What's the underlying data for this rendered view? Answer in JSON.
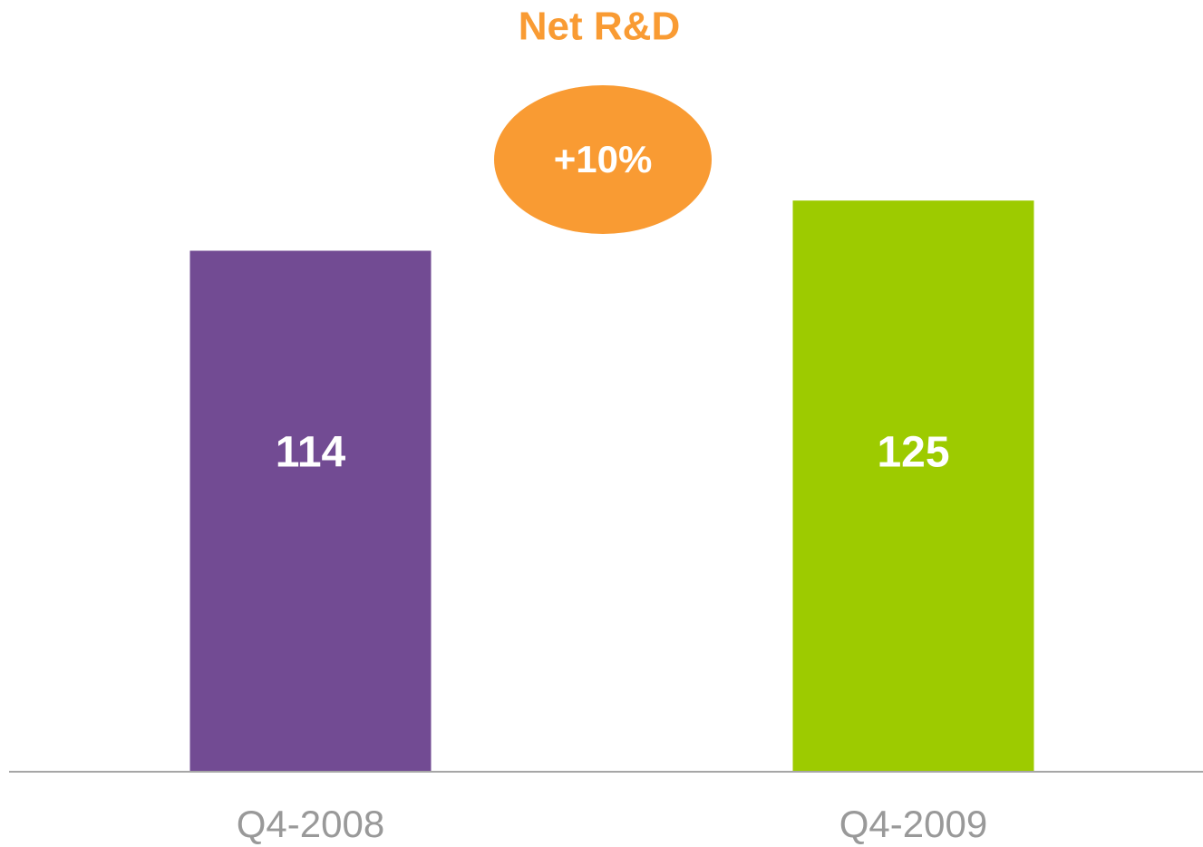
{
  "chart_data": {
    "type": "bar",
    "title": "Net R&D",
    "annotation": "+10%",
    "categories": [
      "Q4-2008",
      "Q4-2009"
    ],
    "values": [
      114,
      125
    ],
    "colors": [
      "#724b93",
      "#9dcb00"
    ],
    "ylim": [
      0,
      130
    ]
  }
}
